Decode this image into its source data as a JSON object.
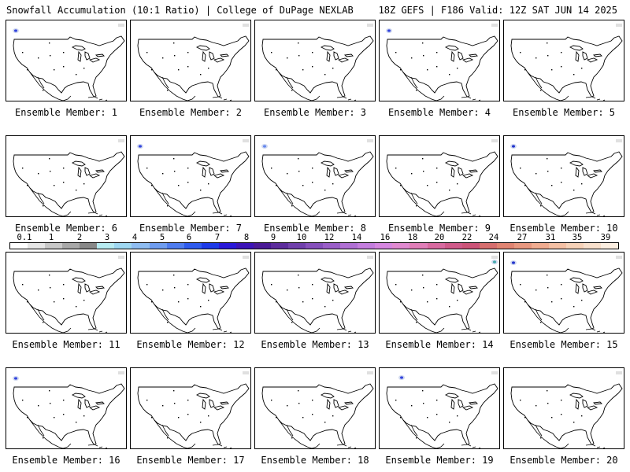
{
  "header": {
    "left_title": "Snowfall Accumulation (10:1 Ratio) | College of DuPage NEXLAB",
    "right_title": "18Z GEFS | F186 Valid: 12Z SAT JUN 14 2025"
  },
  "panels": [
    {
      "label": "Ensemble Member: 1",
      "snow_spots": [
        {
          "where": "northwest",
          "color": "#3344dd"
        }
      ]
    },
    {
      "label": "Ensemble Member: 2",
      "snow_spots": []
    },
    {
      "label": "Ensemble Member: 3",
      "snow_spots": []
    },
    {
      "label": "Ensemble Member: 4",
      "snow_spots": [
        {
          "where": "northwest",
          "color": "#3344dd"
        }
      ]
    },
    {
      "label": "Ensemble Member: 5",
      "snow_spots": []
    },
    {
      "label": "Ensemble Member: 6",
      "snow_spots": []
    },
    {
      "label": "Ensemble Member: 7",
      "snow_spots": [
        {
          "where": "northwest",
          "color": "#3344dd"
        }
      ]
    },
    {
      "label": "Ensemble Member: 8",
      "snow_spots": [
        {
          "where": "northwest",
          "color": "#6688ee"
        }
      ]
    },
    {
      "label": "Ensemble Member: 9",
      "snow_spots": []
    },
    {
      "label": "Ensemble Member: 10",
      "snow_spots": [
        {
          "where": "northwest",
          "color": "#2233cc"
        }
      ]
    },
    {
      "label": "Ensemble Member: 11",
      "snow_spots": []
    },
    {
      "label": "Ensemble Member: 12",
      "snow_spots": []
    },
    {
      "label": "Ensemble Member: 13",
      "snow_spots": []
    },
    {
      "label": "Ensemble Member: 14",
      "snow_spots": [
        {
          "where": "northeast",
          "color": "#44aaaa"
        }
      ]
    },
    {
      "label": "Ensemble Member: 15",
      "snow_spots": [
        {
          "where": "northwest",
          "color": "#2233cc"
        }
      ]
    },
    {
      "label": "Ensemble Member: 16",
      "snow_spots": [
        {
          "where": "northwest",
          "color": "#3344dd"
        }
      ]
    },
    {
      "label": "Ensemble Member: 17",
      "snow_spots": []
    },
    {
      "label": "Ensemble Member: 18",
      "snow_spots": []
    },
    {
      "label": "Ensemble Member: 19",
      "snow_spots": [
        {
          "where": "north",
          "color": "#3344dd"
        }
      ]
    },
    {
      "label": "Ensemble Member: 20",
      "snow_spots": []
    }
  ],
  "colorbar": {
    "tick_labels": [
      "0.1",
      "1",
      "2",
      "3",
      "4",
      "5",
      "6",
      "7",
      "8",
      "9",
      "10",
      "12",
      "14",
      "16",
      "18",
      "20",
      "22",
      "24",
      "27",
      "31",
      "35",
      "39"
    ],
    "colors": [
      "#ffffff",
      "#e6e6e6",
      "#c8c8c8",
      "#a8a8a8",
      "#888888",
      "#b8ecf2",
      "#9fd8f2",
      "#8fbdf2",
      "#6f9df0",
      "#4f7cef",
      "#2f5bee",
      "#1e3be8",
      "#2a19d9",
      "#3c14b8",
      "#4a1a96",
      "#5c2c9c",
      "#7040ac",
      "#8650bc",
      "#9a5ec8",
      "#b070d4",
      "#c47ede",
      "#d687e0",
      "#e08ad0",
      "#e07eb8",
      "#d86aa0",
      "#d05a8a",
      "#cc5478",
      "#d66e6e",
      "#e08472",
      "#e89880",
      "#f0ac90",
      "#f4c0a4",
      "#f6d2b8",
      "#f8e0cc",
      "#fbeee0"
    ]
  }
}
